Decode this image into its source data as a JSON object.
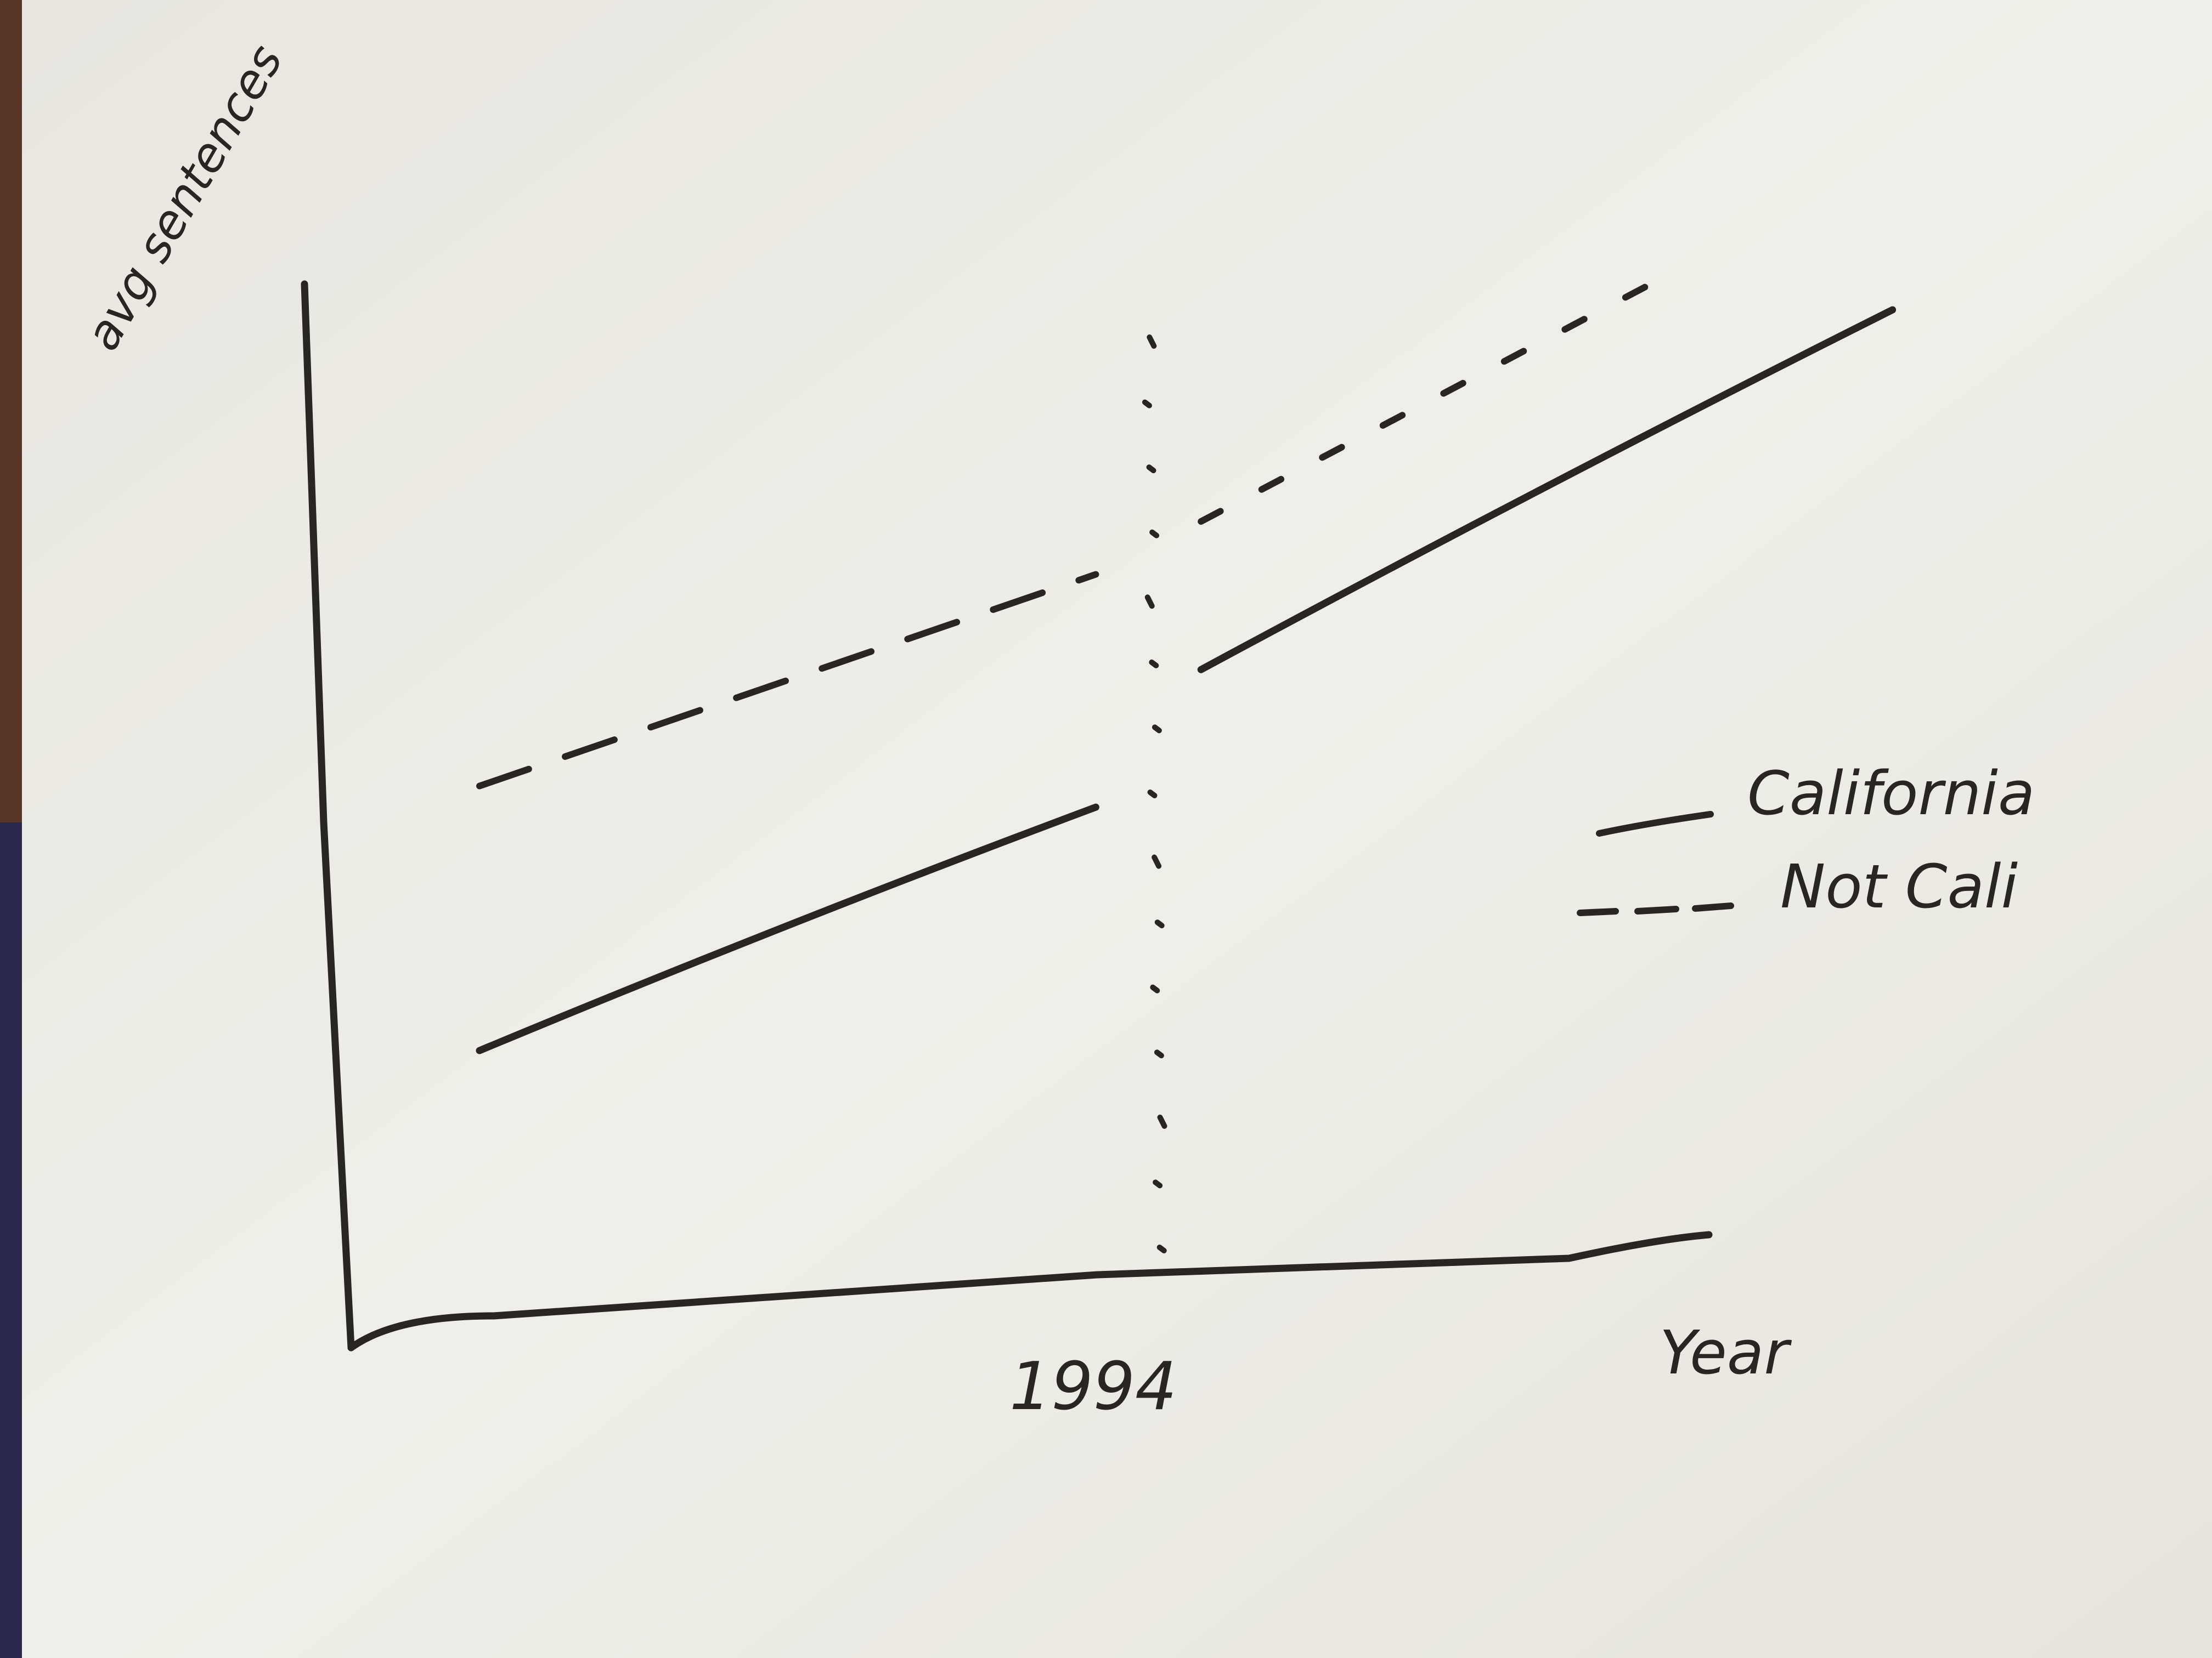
{
  "chart_data": {
    "type": "line",
    "title": "",
    "xlabel": "Year",
    "ylabel": "avg sentences",
    "x_ticks": [
      "1994"
    ],
    "cutoff_label": "1994",
    "grid": false,
    "legend_position": "right",
    "axis_range": {
      "x": [
        0,
        100
      ],
      "y": [
        0,
        100
      ]
    },
    "series": [
      {
        "name": "California",
        "style": "solid",
        "segments": [
          {
            "x": [
              10,
              51
            ],
            "y": [
              23,
              46
            ]
          },
          {
            "x": [
              58,
              104
            ],
            "y": [
              59,
              93
            ]
          }
        ]
      },
      {
        "name": "Not Cali",
        "style": "dashed",
        "segments": [
          {
            "x": [
              10,
              51
            ],
            "y": [
              48,
              68
            ]
          },
          {
            "x": [
              58,
              90
            ],
            "y": [
              73,
              97
            ]
          }
        ]
      }
    ],
    "cutoff_x": 54.5
  },
  "colors": {
    "ink": "#2a2522",
    "paper": "#ecebe4",
    "background": "#4a2e24"
  }
}
